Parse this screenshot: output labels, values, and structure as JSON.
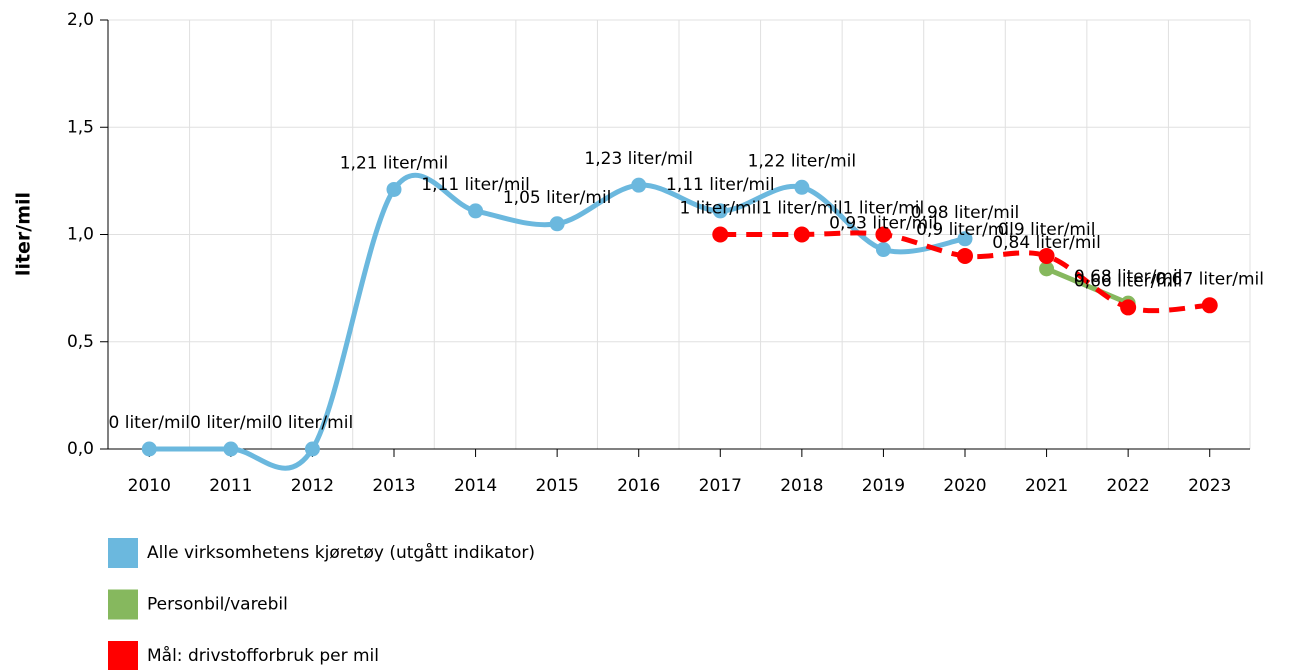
{
  "chart_data": {
    "type": "line",
    "ylabel": "liter/mil",
    "categories": [
      "2010",
      "2011",
      "2012",
      "2013",
      "2014",
      "2015",
      "2016",
      "2017",
      "2018",
      "2019",
      "2020",
      "2021",
      "2022",
      "2023"
    ],
    "ylim": [
      0,
      2
    ],
    "yticks": [
      {
        "value": 0,
        "label": "0,0"
      },
      {
        "value": 0.5,
        "label": "0,5"
      },
      {
        "value": 1,
        "label": "1,0"
      },
      {
        "value": 1.5,
        "label": "1,5"
      },
      {
        "value": 2,
        "label": "2,0"
      }
    ],
    "grid": true,
    "smooth": true,
    "legend": "bottom",
    "series": [
      {
        "name": "Alle virksomhetens kjøretøy (utgått indikator)",
        "color": "#6bb8de",
        "dashed": false,
        "values": [
          0,
          0,
          0,
          1.21,
          1.11,
          1.05,
          1.23,
          1.11,
          1.22,
          0.93,
          0.98,
          null,
          null,
          null
        ],
        "value_labels": [
          "0 liter/mil",
          "0 liter/mil",
          "0 liter/mil",
          "1,21 liter/mil",
          "1,11 liter/mil",
          "1,05 liter/mil",
          "1,23 liter/mil",
          "1,11 liter/mil",
          "1,22 liter/mil",
          "0,93 liter/mil",
          "0,98 liter/mil",
          null,
          null,
          null
        ]
      },
      {
        "name": "Personbil/varebil",
        "color": "#86b85e",
        "dashed": false,
        "values": [
          null,
          null,
          null,
          null,
          null,
          null,
          null,
          null,
          null,
          null,
          null,
          0.84,
          0.68,
          null
        ],
        "value_labels": [
          null,
          null,
          null,
          null,
          null,
          null,
          null,
          null,
          null,
          null,
          null,
          "0,84 liter/mil",
          "0,68 liter/mil",
          null
        ]
      },
      {
        "name": "Mål: drivstofforbruk per mil",
        "color": "#ff0000",
        "dashed": true,
        "values": [
          null,
          null,
          null,
          null,
          null,
          null,
          null,
          1,
          1,
          1,
          0.9,
          0.9,
          0.66,
          0.67
        ],
        "value_labels": [
          null,
          null,
          null,
          null,
          null,
          null,
          null,
          "1 liter/mil",
          "1 liter/mil",
          "1 liter/mil",
          "0,9 liter/mil",
          "0,9 liter/mil",
          "0,66 liter/mil",
          "0,67 liter/mil"
        ]
      }
    ]
  }
}
